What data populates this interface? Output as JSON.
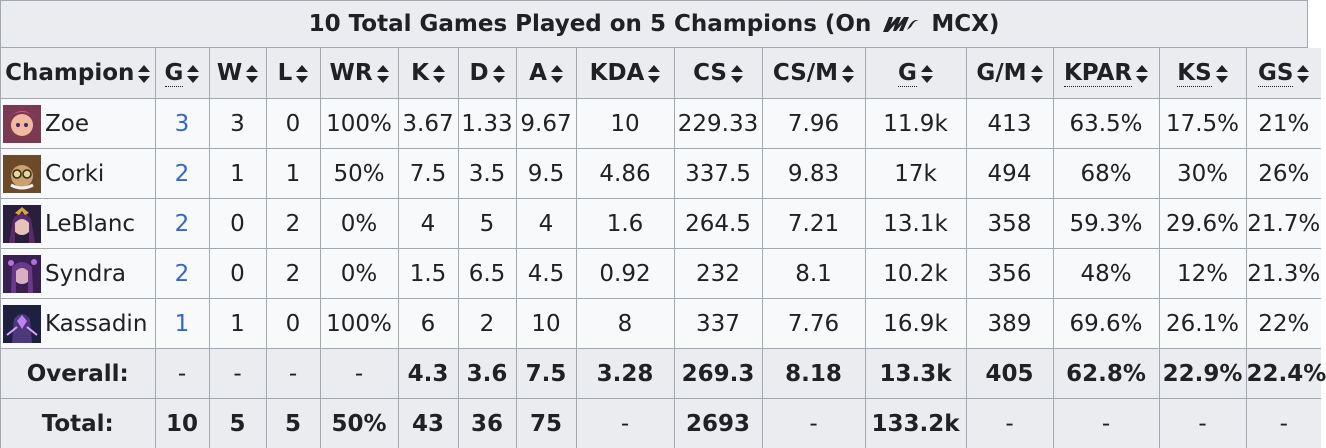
{
  "caption": {
    "text_before": "10 Total Games Played on 5 Champions (On",
    "team": "MCX",
    "text_after": ")"
  },
  "headers": {
    "champion": "Champion",
    "g": "G",
    "w": "W",
    "l": "L",
    "wr": "WR",
    "k": "K",
    "d": "D",
    "a": "A",
    "kda": "KDA",
    "cs": "CS",
    "csm": "CS/M",
    "gold": "G",
    "gm": "G/M",
    "kpar": "KPAR",
    "ks": "KS",
    "gs": "GS"
  },
  "rows": [
    {
      "champion": "Zoe",
      "g": "3",
      "w": "3",
      "l": "0",
      "wr": "100%",
      "k": "3.67",
      "d": "1.33",
      "a": "9.67",
      "kda": "10",
      "cs": "229.33",
      "csm": "7.96",
      "gold": "11.9k",
      "gm": "413",
      "kpar": "63.5%",
      "ks": "17.5%",
      "gs": "21%"
    },
    {
      "champion": "Corki",
      "g": "2",
      "w": "1",
      "l": "1",
      "wr": "50%",
      "k": "7.5",
      "d": "3.5",
      "a": "9.5",
      "kda": "4.86",
      "cs": "337.5",
      "csm": "9.83",
      "gold": "17k",
      "gm": "494",
      "kpar": "68%",
      "ks": "30%",
      "gs": "26%"
    },
    {
      "champion": "LeBlanc",
      "g": "2",
      "w": "0",
      "l": "2",
      "wr": "0%",
      "k": "4",
      "d": "5",
      "a": "4",
      "kda": "1.6",
      "cs": "264.5",
      "csm": "7.21",
      "gold": "13.1k",
      "gm": "358",
      "kpar": "59.3%",
      "ks": "29.6%",
      "gs": "21.7%"
    },
    {
      "champion": "Syndra",
      "g": "2",
      "w": "0",
      "l": "2",
      "wr": "0%",
      "k": "1.5",
      "d": "6.5",
      "a": "4.5",
      "kda": "0.92",
      "cs": "232",
      "csm": "8.1",
      "gold": "10.2k",
      "gm": "356",
      "kpar": "48%",
      "ks": "12%",
      "gs": "21.3%"
    },
    {
      "champion": "Kassadin",
      "g": "1",
      "w": "1",
      "l": "0",
      "wr": "100%",
      "k": "6",
      "d": "2",
      "a": "10",
      "kda": "8",
      "cs": "337",
      "csm": "7.76",
      "gold": "16.9k",
      "gm": "389",
      "kpar": "69.6%",
      "ks": "26.1%",
      "gs": "22%"
    }
  ],
  "overall": {
    "label": "Overall:",
    "g": "-",
    "w": "-",
    "l": "-",
    "wr": "-",
    "k": "4.3",
    "d": "3.6",
    "a": "7.5",
    "kda": "3.28",
    "cs": "269.3",
    "csm": "8.18",
    "gold": "13.3k",
    "gm": "405",
    "kpar": "62.8%",
    "ks": "22.9%",
    "gs": "22.4%"
  },
  "total": {
    "label": "Total:",
    "g": "10",
    "w": "5",
    "l": "5",
    "wr": "50%",
    "k": "43",
    "d": "36",
    "a": "75",
    "kda": "-",
    "cs": "2693",
    "csm": "-",
    "gold": "133.2k",
    "gm": "-",
    "kpar": "-",
    "ks": "-",
    "gs": "-"
  },
  "colors": {
    "header_bg": "#eaecf0",
    "cell_bg": "#f8f9fa",
    "border": "#a2a9b1",
    "link": "#3366cc"
  },
  "icons": {
    "portraits": [
      "zoe-portrait",
      "corki-portrait",
      "leblanc-portrait",
      "syndra-portrait",
      "kassadin-portrait"
    ],
    "team": "mcx-logo-icon",
    "sort": "sort-arrows-icon"
  }
}
